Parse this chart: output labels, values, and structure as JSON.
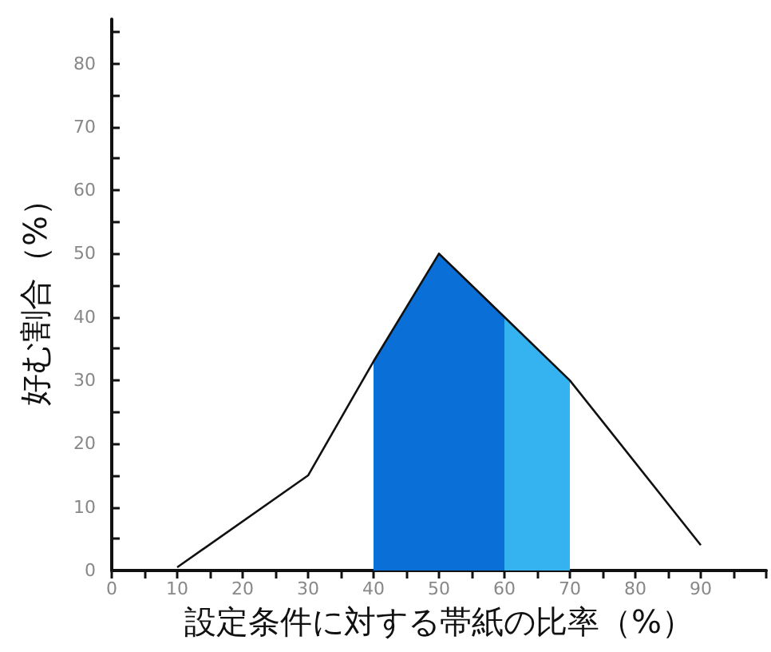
{
  "chart_data": {
    "type": "line",
    "xlabel": "設定条件に対する帯紙の比率（%）",
    "ylabel": "好む割合（%）",
    "x": [
      10,
      30,
      40,
      50,
      60,
      70,
      90
    ],
    "series": [
      {
        "type": "area",
        "color": "#0a6fd6",
        "x": [
          40,
          50,
          60
        ],
        "values": [
          33,
          50,
          40
        ]
      },
      {
        "type": "area",
        "color": "#35b3f0",
        "x": [
          60,
          70
        ],
        "values": [
          40,
          30
        ]
      },
      {
        "color": "#111111",
        "values": [
          0.5,
          15,
          33,
          50,
          40,
          30,
          4
        ]
      }
    ],
    "xlim": [
      0,
      100
    ],
    "xticks": [
      0,
      {
        "value": 5,
        "label": null
      },
      10,
      {
        "value": 15,
        "label": null
      },
      20,
      {
        "value": 25,
        "label": null
      },
      30,
      {
        "value": 35,
        "label": null
      },
      40,
      {
        "value": 45,
        "label": null
      },
      50,
      {
        "value": 55,
        "label": null
      },
      60,
      {
        "value": 65,
        "label": null
      },
      70,
      {
        "value": 75,
        "label": null
      },
      80,
      {
        "value": 85,
        "label": null
      },
      90,
      {
        "value": 95,
        "label": null
      },
      {
        "value": 100,
        "label": null
      }
    ],
    "ylim": [
      0,
      87
    ],
    "yticks": [
      0,
      {
        "value": 5,
        "label": null
      },
      10,
      {
        "value": 15,
        "label": null
      },
      20,
      {
        "value": 25,
        "label": null
      },
      30,
      {
        "value": 35,
        "label": null
      },
      40,
      {
        "value": 45,
        "label": null
      },
      50,
      {
        "value": 55,
        "label": null
      },
      60,
      {
        "value": 65,
        "label": null
      },
      70,
      {
        "value": 75,
        "label": null
      },
      80,
      {
        "value": 85,
        "label": null
      }
    ],
    "grid": false,
    "marker": "none",
    "line_style": "solid"
  }
}
